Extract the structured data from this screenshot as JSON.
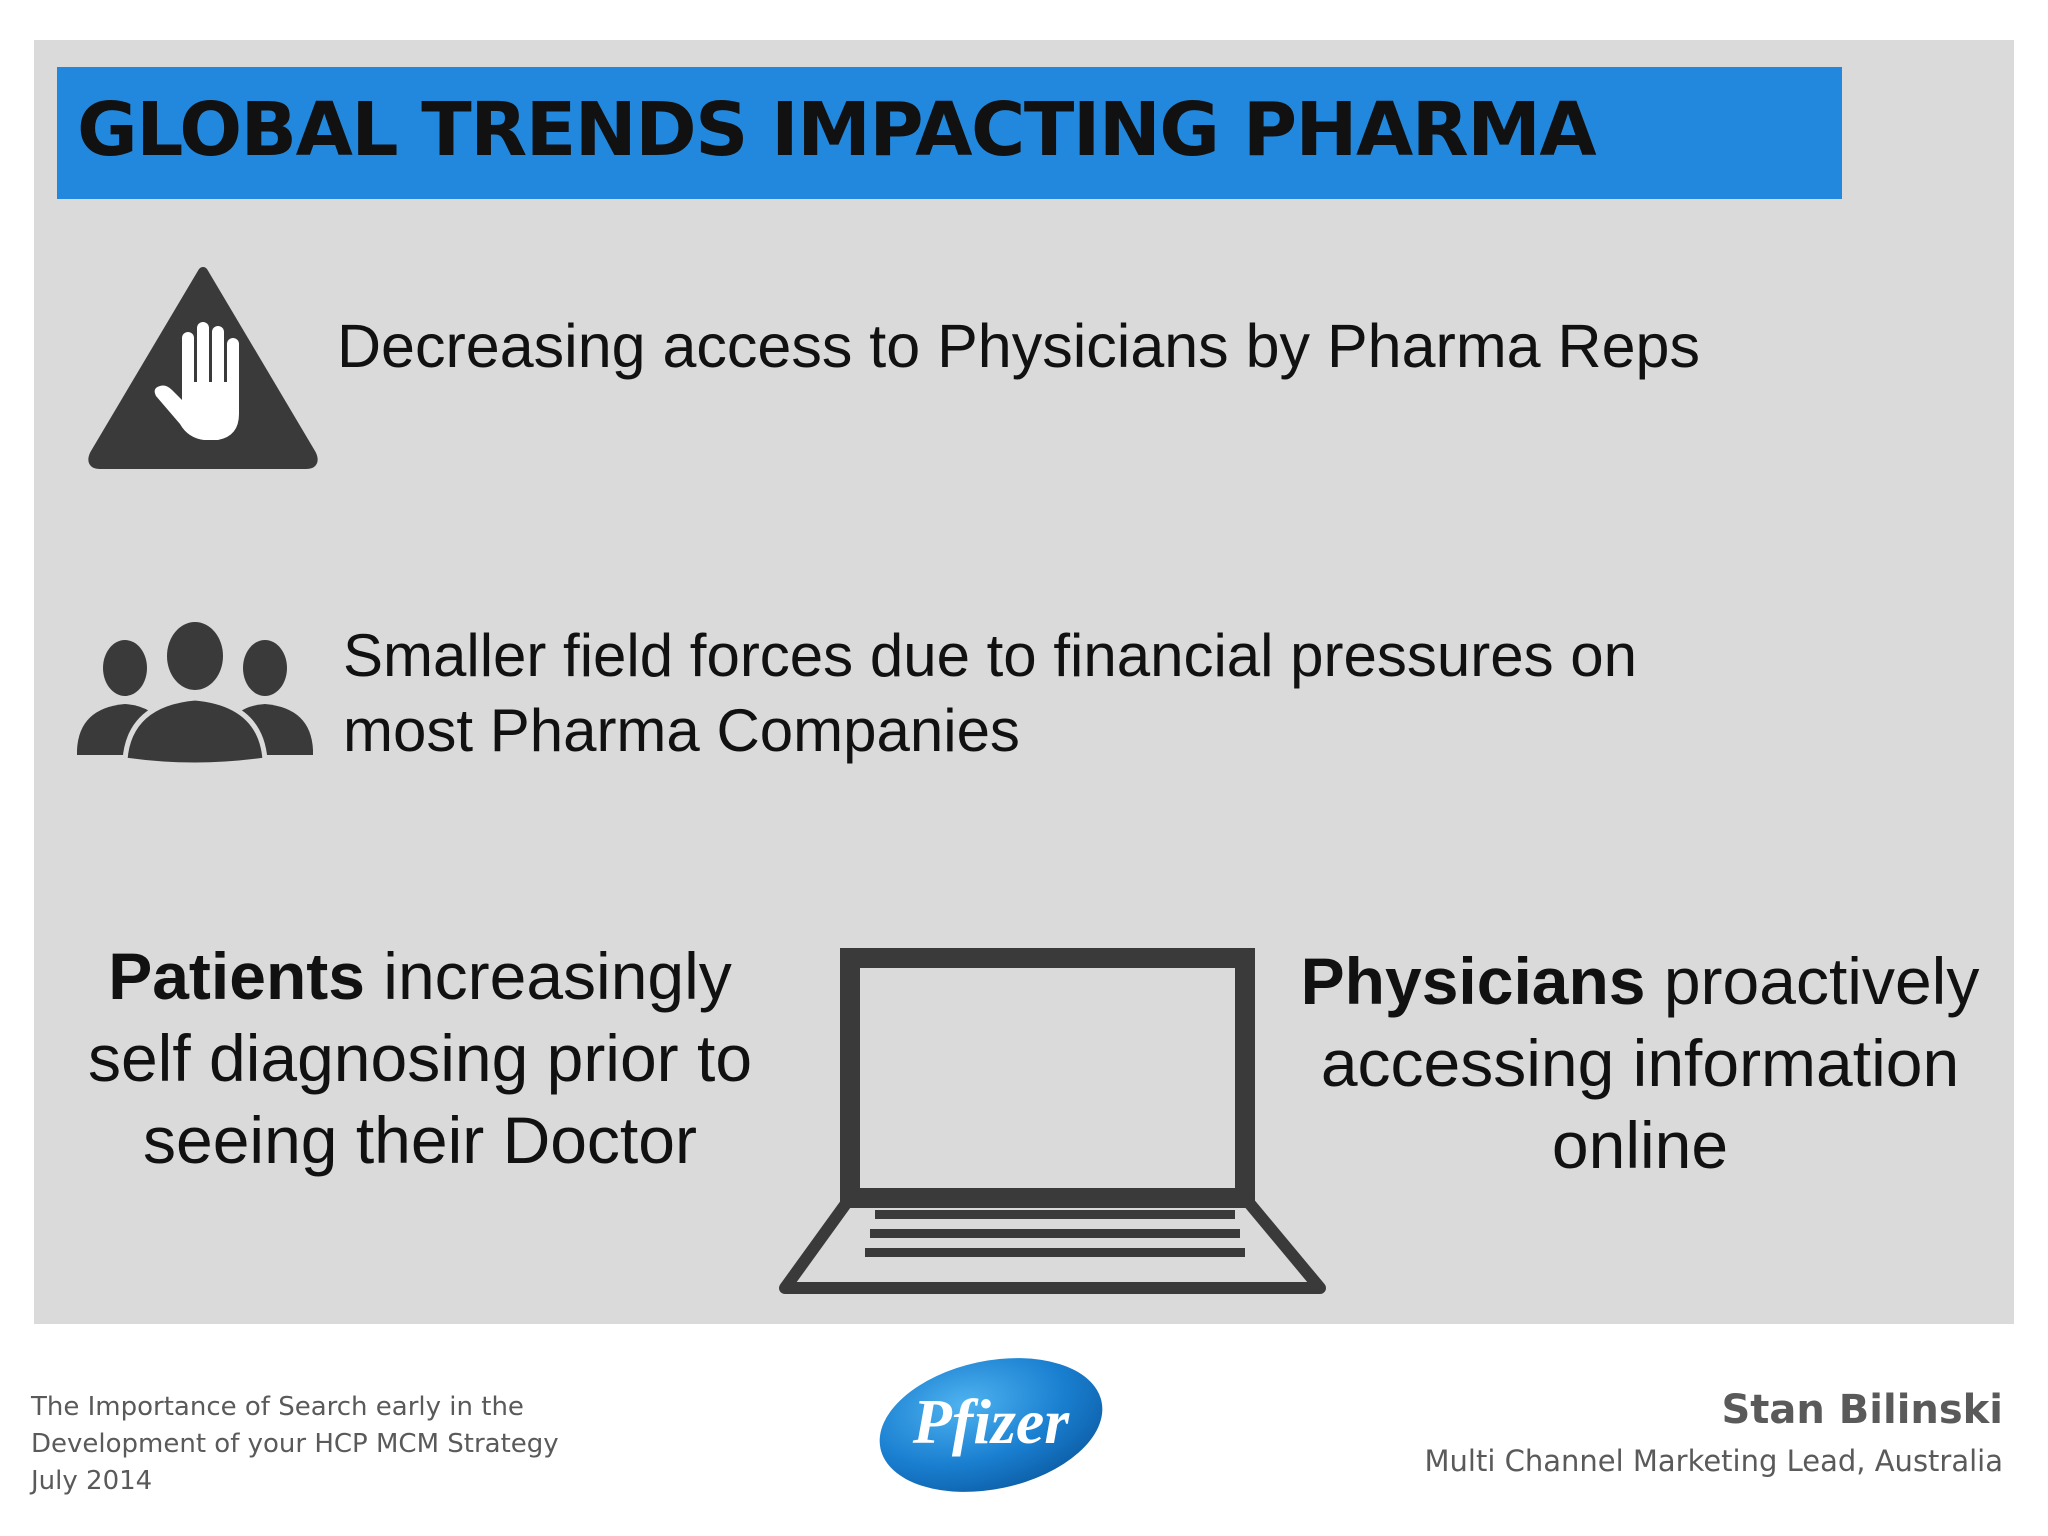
{
  "slide": {
    "title": "GLOBAL TRENDS IMPACTING PHARMA",
    "trends": [
      {
        "icon": "warning-hand-icon",
        "lines": [
          "Decreasing access to Physicians by Pharma Reps"
        ]
      },
      {
        "icon": "people-group-icon",
        "lines": [
          "Smaller field forces due to financial pressures on",
          "most Pharma Companies"
        ]
      }
    ],
    "patients": {
      "bold": "Patients",
      "rest_line1": " increasingly",
      "line2": "self diagnosing prior to",
      "line3": "seeing their Doctor"
    },
    "center_icon": "laptop-icon",
    "physicians": {
      "bold": "Physicians",
      "rest_line1": " proactively",
      "line2": "accessing information",
      "line3": "online"
    }
  },
  "footer": {
    "left_lines": [
      "The Importance of Search early in the",
      "Development of your HCP MCM Strategy",
      "July 2014"
    ],
    "logo_text": "Pfizer",
    "author_name": "Stan Bilinski",
    "author_role": "Multi Channel Marketing Lead, Australia"
  },
  "colors": {
    "title_bar": "#2288dd",
    "panel": "#dadada",
    "icon": "#3a3a3a",
    "logo": "#1a7fd0"
  }
}
